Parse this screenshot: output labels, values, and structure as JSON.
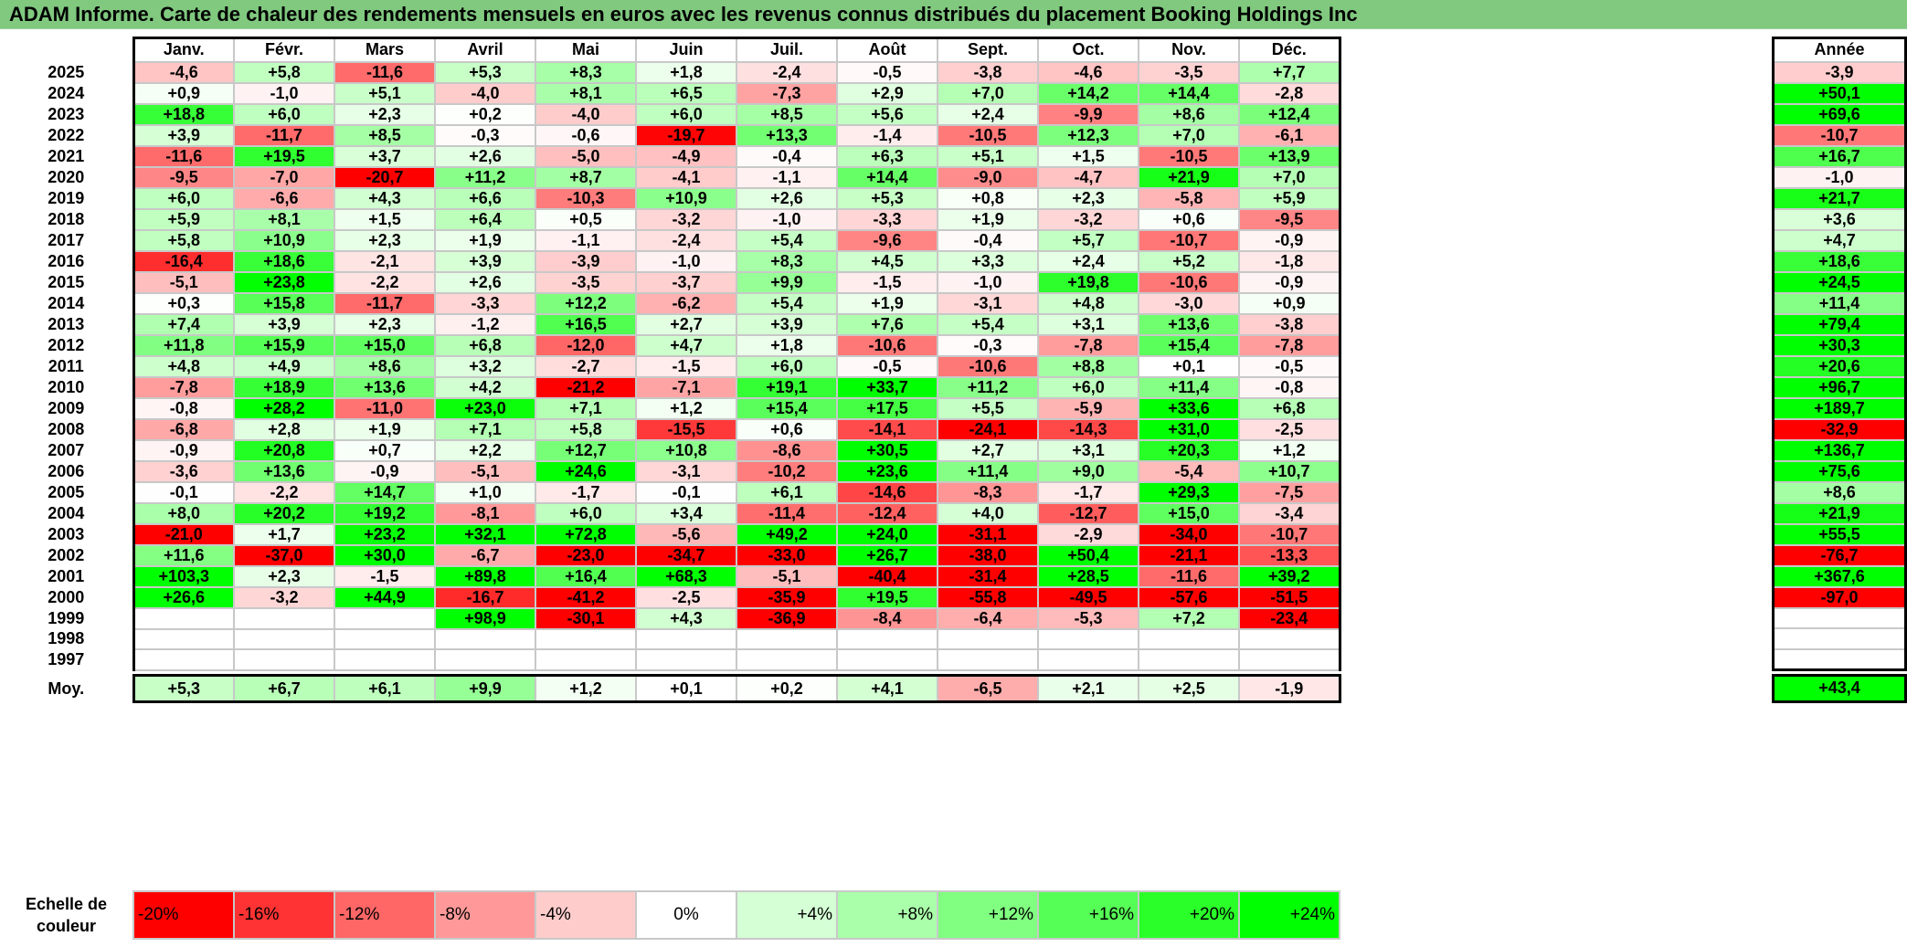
{
  "title": "ADAM Informe. Carte de chaleur des rendements mensuels en euros avec les revenus connus distribués du placement Booking Holdings Inc",
  "chart_data": {
    "type": "heatmap",
    "title": "ADAM Informe. Carte de chaleur des rendements mensuels en euros avec les revenus connus distribués du placement Booking Holdings Inc",
    "months": [
      "Janv.",
      "Févr.",
      "Mars",
      "Avril",
      "Mai",
      "Juin",
      "Juil.",
      "Août",
      "Sept.",
      "Oct.",
      "Nov.",
      "Déc."
    ],
    "annual_header": "Année",
    "rows": [
      {
        "year": "2025",
        "values": [
          "-4,6",
          "+5,8",
          "-11,6",
          "+5,3",
          "+8,3",
          "+1,8",
          "-2,4",
          "-0,5",
          "-3,8",
          "-4,6",
          "-3,5",
          "+7,7"
        ],
        "annual": "-3,9"
      },
      {
        "year": "2024",
        "values": [
          "+0,9",
          "-1,0",
          "+5,1",
          "-4,0",
          "+8,1",
          "+6,5",
          "-7,3",
          "+2,9",
          "+7,0",
          "+14,2",
          "+14,4",
          "-2,8"
        ],
        "annual": "+50,1"
      },
      {
        "year": "2023",
        "values": [
          "+18,8",
          "+6,0",
          "+2,3",
          "+0,2",
          "-4,0",
          "+6,0",
          "+8,5",
          "+5,6",
          "+2,4",
          "-9,9",
          "+8,6",
          "+12,4"
        ],
        "annual": "+69,6"
      },
      {
        "year": "2022",
        "values": [
          "+3,9",
          "-11,7",
          "+8,5",
          "-0,3",
          "-0,6",
          "-19,7",
          "+13,3",
          "-1,4",
          "-10,5",
          "+12,3",
          "+7,0",
          "-6,1"
        ],
        "annual": "-10,7"
      },
      {
        "year": "2021",
        "values": [
          "-11,6",
          "+19,5",
          "+3,7",
          "+2,6",
          "-5,0",
          "-4,9",
          "-0,4",
          "+6,3",
          "+5,1",
          "+1,5",
          "-10,5",
          "+13,9"
        ],
        "annual": "+16,7"
      },
      {
        "year": "2020",
        "values": [
          "-9,5",
          "-7,0",
          "-20,7",
          "+11,2",
          "+8,7",
          "-4,1",
          "-1,1",
          "+14,4",
          "-9,0",
          "-4,7",
          "+21,9",
          "+7,0"
        ],
        "annual": "-1,0"
      },
      {
        "year": "2019",
        "values": [
          "+6,0",
          "-6,6",
          "+4,3",
          "+6,6",
          "-10,3",
          "+10,9",
          "+2,6",
          "+5,3",
          "+0,8",
          "+2,3",
          "-5,8",
          "+5,9"
        ],
        "annual": "+21,7"
      },
      {
        "year": "2018",
        "values": [
          "+5,9",
          "+8,1",
          "+1,5",
          "+6,4",
          "+0,5",
          "-3,2",
          "-1,0",
          "-3,3",
          "+1,9",
          "-3,2",
          "+0,6",
          "-9,5"
        ],
        "annual": "+3,6"
      },
      {
        "year": "2017",
        "values": [
          "+5,8",
          "+10,9",
          "+2,3",
          "+1,9",
          "-1,1",
          "-2,4",
          "+5,4",
          "-9,6",
          "-0,4",
          "+5,7",
          "-10,7",
          "-0,9"
        ],
        "annual": "+4,7"
      },
      {
        "year": "2016",
        "values": [
          "-16,4",
          "+18,6",
          "-2,1",
          "+3,9",
          "-3,9",
          "-1,0",
          "+8,3",
          "+4,5",
          "+3,3",
          "+2,4",
          "+5,2",
          "-1,8"
        ],
        "annual": "+18,6"
      },
      {
        "year": "2015",
        "values": [
          "-5,1",
          "+23,8",
          "-2,2",
          "+2,6",
          "-3,5",
          "-3,7",
          "+9,9",
          "-1,5",
          "-1,0",
          "+19,8",
          "-10,6",
          "-0,9"
        ],
        "annual": "+24,5"
      },
      {
        "year": "2014",
        "values": [
          "+0,3",
          "+15,8",
          "-11,7",
          "-3,3",
          "+12,2",
          "-6,2",
          "+5,4",
          "+1,9",
          "-3,1",
          "+4,8",
          "-3,0",
          "+0,9"
        ],
        "annual": "+11,4"
      },
      {
        "year": "2013",
        "values": [
          "+7,4",
          "+3,9",
          "+2,3",
          "-1,2",
          "+16,5",
          "+2,7",
          "+3,9",
          "+7,6",
          "+5,4",
          "+3,1",
          "+13,6",
          "-3,8"
        ],
        "annual": "+79,4"
      },
      {
        "year": "2012",
        "values": [
          "+11,8",
          "+15,9",
          "+15,0",
          "+6,8",
          "-12,0",
          "+4,7",
          "+1,8",
          "-10,6",
          "-0,3",
          "-7,8",
          "+15,4",
          "-7,8"
        ],
        "annual": "+30,3"
      },
      {
        "year": "2011",
        "values": [
          "+4,8",
          "+4,9",
          "+8,6",
          "+3,2",
          "-2,7",
          "-1,5",
          "+6,0",
          "-0,5",
          "-10,6",
          "+8,8",
          "+0,1",
          "-0,5"
        ],
        "annual": "+20,6"
      },
      {
        "year": "2010",
        "values": [
          "-7,8",
          "+18,9",
          "+13,6",
          "+4,2",
          "-21,2",
          "-7,1",
          "+19,1",
          "+33,7",
          "+11,2",
          "+6,0",
          "+11,4",
          "-0,8"
        ],
        "annual": "+96,7"
      },
      {
        "year": "2009",
        "values": [
          "-0,8",
          "+28,2",
          "-11,0",
          "+23,0",
          "+7,1",
          "+1,2",
          "+15,4",
          "+17,5",
          "+5,5",
          "-5,9",
          "+33,6",
          "+6,8"
        ],
        "annual": "+189,7"
      },
      {
        "year": "2008",
        "values": [
          "-6,8",
          "+2,8",
          "+1,9",
          "+7,1",
          "+5,8",
          "-15,5",
          "+0,6",
          "-14,1",
          "-24,1",
          "-14,3",
          "+31,0",
          "-2,5"
        ],
        "annual": "-32,9"
      },
      {
        "year": "2007",
        "values": [
          "-0,9",
          "+20,8",
          "+0,7",
          "+2,2",
          "+12,7",
          "+10,8",
          "-8,6",
          "+30,5",
          "+2,7",
          "+3,1",
          "+20,3",
          "+1,2"
        ],
        "annual": "+136,7"
      },
      {
        "year": "2006",
        "values": [
          "-3,6",
          "+13,6",
          "-0,9",
          "-5,1",
          "+24,6",
          "-3,1",
          "-10,2",
          "+23,6",
          "+11,4",
          "+9,0",
          "-5,4",
          "+10,7"
        ],
        "annual": "+75,6"
      },
      {
        "year": "2005",
        "values": [
          "-0,1",
          "-2,2",
          "+14,7",
          "+1,0",
          "-1,7",
          "-0,1",
          "+6,1",
          "-14,6",
          "-8,3",
          "-1,7",
          "+29,3",
          "-7,5"
        ],
        "annual": "+8,6"
      },
      {
        "year": "2004",
        "values": [
          "+8,0",
          "+20,2",
          "+19,2",
          "-8,1",
          "+6,0",
          "+3,4",
          "-11,4",
          "-12,4",
          "+4,0",
          "-12,7",
          "+15,0",
          "-3,4"
        ],
        "annual": "+21,9"
      },
      {
        "year": "2003",
        "values": [
          "-21,0",
          "+1,7",
          "+23,2",
          "+32,1",
          "+72,8",
          "-5,6",
          "+49,2",
          "+24,0",
          "-31,1",
          "-2,9",
          "-34,0",
          "-10,7"
        ],
        "annual": "+55,5"
      },
      {
        "year": "2002",
        "values": [
          "+11,6",
          "-37,0",
          "+30,0",
          "-6,7",
          "-23,0",
          "-34,7",
          "-33,0",
          "+26,7",
          "-38,0",
          "+50,4",
          "-21,1",
          "-13,3"
        ],
        "annual": "-76,7"
      },
      {
        "year": "2001",
        "values": [
          "+103,3",
          "+2,3",
          "-1,5",
          "+89,8",
          "+16,4",
          "+68,3",
          "-5,1",
          "-40,4",
          "-31,4",
          "+28,5",
          "-11,6",
          "+39,2"
        ],
        "annual": "+367,6"
      },
      {
        "year": "2000",
        "values": [
          "+26,6",
          "-3,2",
          "+44,9",
          "-16,7",
          "-41,2",
          "-2,5",
          "-35,9",
          "+19,5",
          "-55,8",
          "-49,5",
          "-57,6",
          "-51,5"
        ],
        "annual": "-97,0"
      },
      {
        "year": "1999",
        "values": [
          "",
          "",
          "",
          "+98,9",
          "-30,1",
          "+4,3",
          "-36,9",
          "-8,4",
          "-6,4",
          "-5,3",
          "+7,2",
          "-23,4"
        ],
        "annual": ""
      },
      {
        "year": "1998",
        "values": [
          "",
          "",
          "",
          "",
          "",
          "",
          "",
          "",
          "",
          "",
          "",
          ""
        ],
        "annual": ""
      },
      {
        "year": "1997",
        "values": [
          "",
          "",
          "",
          "",
          "",
          "",
          "",
          "",
          "",
          "",
          "",
          ""
        ],
        "annual": ""
      }
    ],
    "average": {
      "label": "Moy.",
      "values": [
        "+5,3",
        "+6,7",
        "+6,1",
        "+9,9",
        "+1,2",
        "+0,1",
        "+0,2",
        "+4,1",
        "-6,5",
        "+2,1",
        "+2,5",
        "-1,9"
      ],
      "annual": "+43,4"
    },
    "color_scale": {
      "label": "Echelle de couleur",
      "stops": [
        "-20%",
        "-16%",
        "-12%",
        "-8%",
        "-4%",
        "0%",
        "+4%",
        "+8%",
        "+12%",
        "+16%",
        "+20%",
        "+24%"
      ],
      "min_color": "#ff0000",
      "mid_color": "#ffffff",
      "max_color": "#00ff00"
    }
  }
}
